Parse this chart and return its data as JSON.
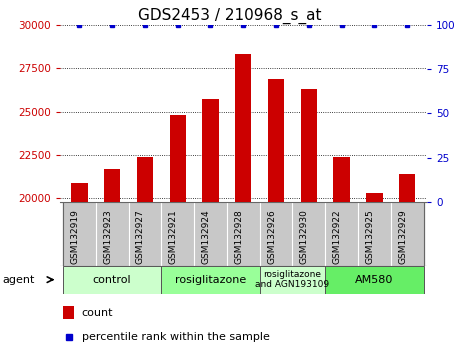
{
  "title": "GDS2453 / 210968_s_at",
  "samples": [
    "GSM132919",
    "GSM132923",
    "GSM132927",
    "GSM132921",
    "GSM132924",
    "GSM132928",
    "GSM132926",
    "GSM132930",
    "GSM132922",
    "GSM132925",
    "GSM132929"
  ],
  "counts": [
    20900,
    21700,
    22400,
    24800,
    25700,
    28300,
    26900,
    26300,
    22400,
    20300,
    21400
  ],
  "percentiles": [
    100,
    100,
    100,
    100,
    100,
    100,
    100,
    100,
    100,
    100,
    100
  ],
  "bar_color": "#cc0000",
  "dot_color": "#0000cc",
  "ylim_left": [
    19800,
    30000
  ],
  "ylim_right": [
    0,
    100
  ],
  "yticks_left": [
    20000,
    22500,
    25000,
    27500,
    30000
  ],
  "yticks_right": [
    0,
    25,
    50,
    75,
    100
  ],
  "groups": [
    {
      "label": "control",
      "start": 0,
      "end": 3,
      "color": "#ccffcc"
    },
    {
      "label": "rosiglitazone",
      "start": 3,
      "end": 6,
      "color": "#99ff99"
    },
    {
      "label": "rosiglitazone\nand AGN193109",
      "start": 6,
      "end": 8,
      "color": "#ccffcc"
    },
    {
      "label": "AM580",
      "start": 8,
      "end": 11,
      "color": "#66ee66"
    }
  ],
  "legend_count_color": "#cc0000",
  "legend_dot_color": "#0000cc",
  "agent_label": "agent",
  "background_color": "#ffffff",
  "plot_bg": "#ffffff",
  "tick_label_color_left": "#cc0000",
  "tick_label_color_right": "#0000cc",
  "title_fontsize": 11,
  "bar_width": 0.5,
  "xlim": [
    -0.6,
    10.6
  ],
  "xlabel_gray": "#c8c8c8",
  "xlabel_sep_color": "#888888"
}
